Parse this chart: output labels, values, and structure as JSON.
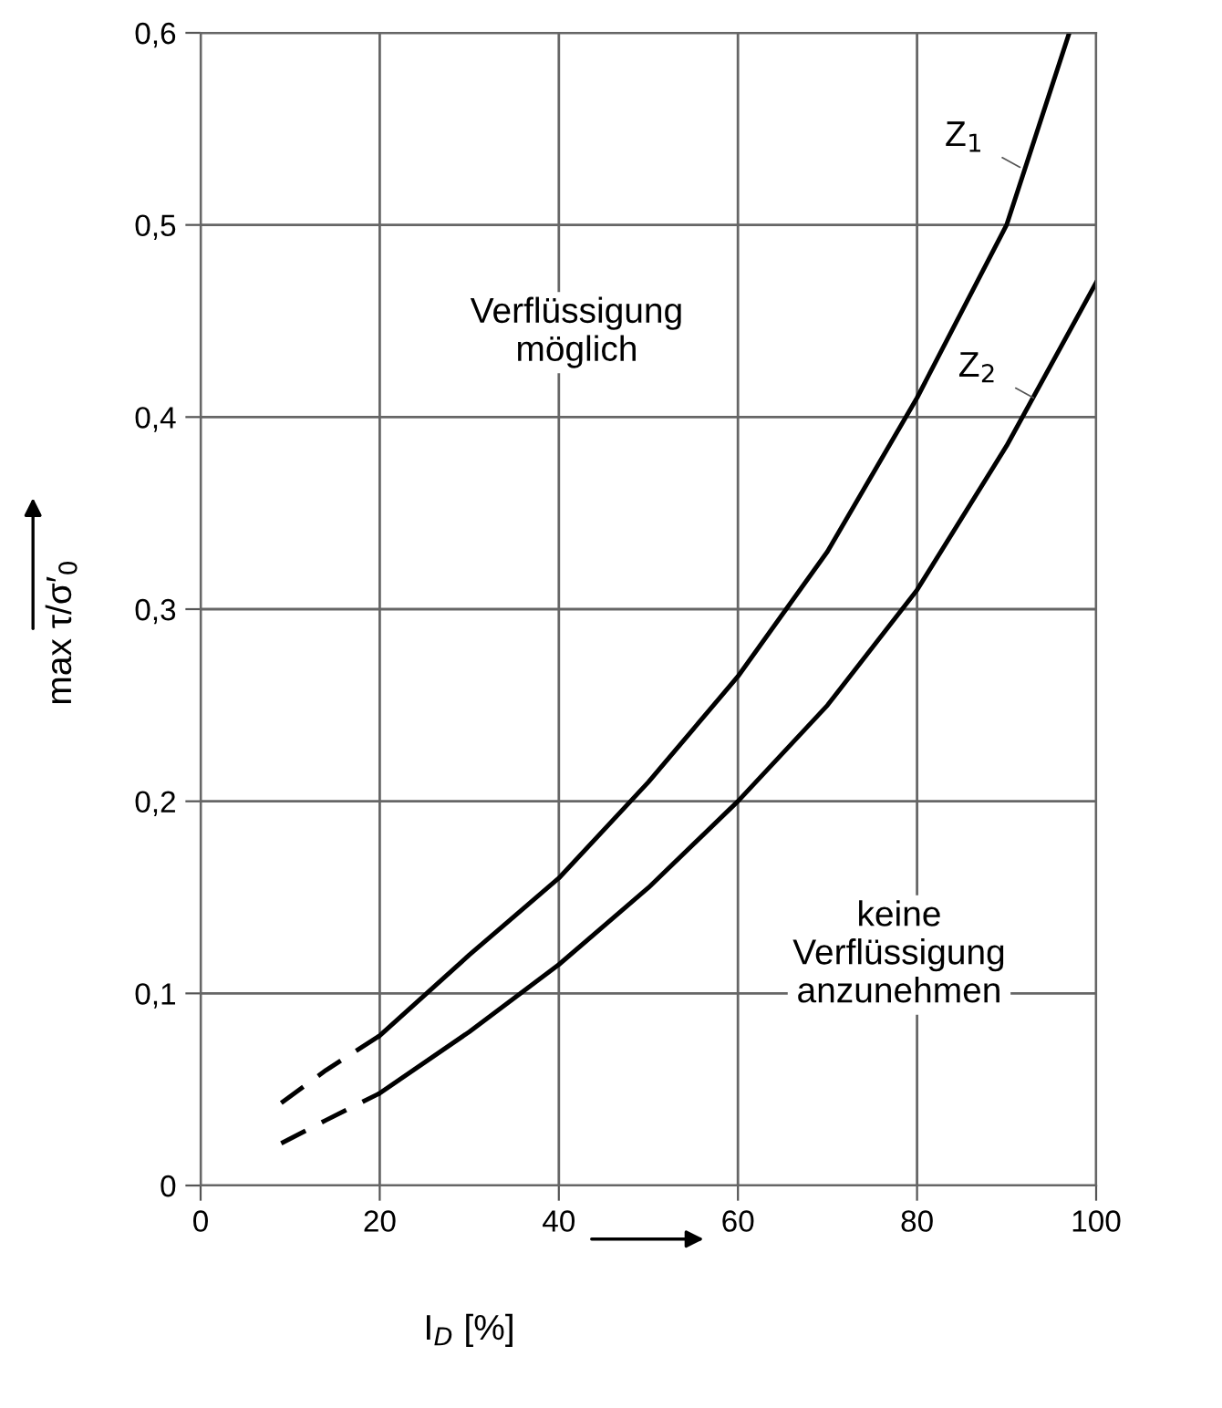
{
  "chart_data": {
    "type": "line",
    "xlabel": "I$_{D}$ [%]",
    "ylabel": "max τ/σ′$_{0}$",
    "xlim": [
      0,
      100
    ],
    "ylim": [
      0,
      0.6
    ],
    "xticks": [
      0,
      20,
      40,
      60,
      80,
      100
    ],
    "yticks": [
      0,
      {
        "value": 0.1,
        "label": "0,1"
      },
      {
        "value": 0.2,
        "label": "0,2"
      },
      {
        "value": 0.3,
        "label": "0,3"
      },
      {
        "value": 0.4,
        "label": "0,4"
      },
      {
        "value": 0.5,
        "label": "0,5"
      },
      {
        "value": 0.6,
        "label": "0,6"
      }
    ],
    "grid": true,
    "legend": false,
    "marker": "none",
    "series": [
      {
        "color": "#000000",
        "line_style": "dashed",
        "x": [
          9,
          14,
          20
        ],
        "values": [
          0.043,
          0.06,
          0.078
        ]
      },
      {
        "color": "#000000",
        "line_style": "solid",
        "x": [
          20,
          30,
          40,
          50,
          60,
          70,
          80,
          90,
          97
        ],
        "values": [
          0.078,
          0.12,
          0.16,
          0.21,
          0.265,
          0.33,
          0.41,
          0.5,
          0.6
        ]
      },
      {
        "color": "#000000",
        "line_style": "dashed",
        "x": [
          9,
          14,
          20
        ],
        "values": [
          0.022,
          0.034,
          0.048
        ]
      },
      {
        "color": "#000000",
        "line_style": "solid",
        "x": [
          20,
          30,
          40,
          50,
          60,
          70,
          80,
          90,
          100
        ],
        "values": [
          0.048,
          0.08,
          0.115,
          0.155,
          0.2,
          0.25,
          0.31,
          0.385,
          0.47
        ]
      }
    ],
    "annotations": [
      {
        "text": "Z$_{1}$",
        "x": 91.5,
        "y": 0.53
      },
      {
        "text": "Z$_{2}$",
        "x": 93,
        "y": 0.41
      },
      "Verflüssigung\nmöglich",
      "keine\nVerflüssigung\nanzunehmen"
    ]
  }
}
